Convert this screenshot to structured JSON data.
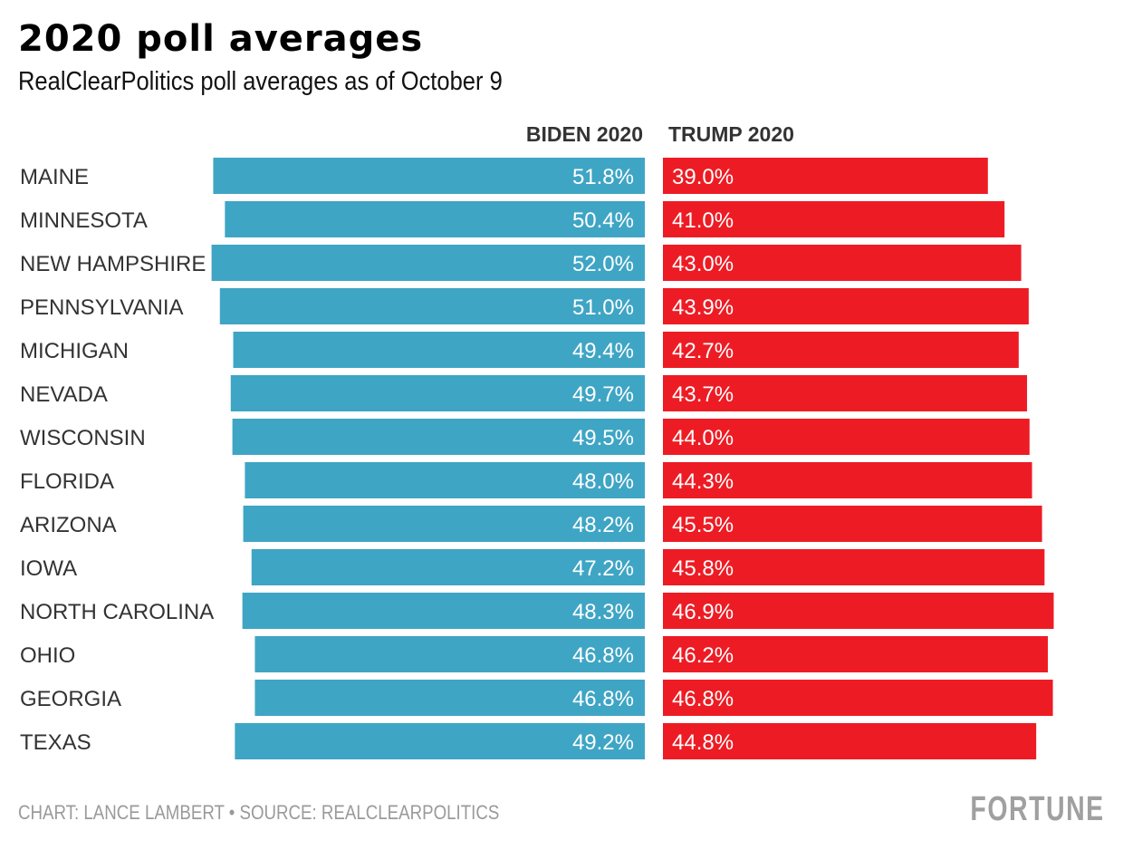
{
  "chart_data": {
    "type": "bar",
    "title": "2020 poll averages",
    "subtitle": "RealClearPolitics poll averages as of October 9",
    "categories": [
      "MAINE",
      "MINNESOTA",
      "NEW HAMPSHIRE",
      "PENNSYLVANIA",
      "MICHIGAN",
      "NEVADA",
      "WISCONSIN",
      "FLORIDA",
      "ARIZONA",
      "IOWA",
      "NORTH CAROLINA",
      "OHIO",
      "GEORGIA",
      "TEXAS"
    ],
    "series": [
      {
        "name": "BIDEN 2020",
        "color": "#3fa5c4",
        "direction": "left",
        "values": [
          51.8,
          50.4,
          52.0,
          51.0,
          49.4,
          49.7,
          49.5,
          48.0,
          48.2,
          47.2,
          48.3,
          46.8,
          46.8,
          49.2
        ],
        "labels": [
          "51.8%",
          "50.4%",
          "52.0%",
          "51.0%",
          "49.4%",
          "49.7%",
          "49.5%",
          "48.0%",
          "48.2%",
          "47.2%",
          "48.3%",
          "46.8%",
          "46.8%",
          "49.2%"
        ]
      },
      {
        "name": "TRUMP 2020",
        "color": "#ed1c24",
        "direction": "right",
        "values": [
          39.0,
          41.0,
          43.0,
          43.9,
          42.7,
          43.7,
          44.0,
          44.3,
          45.5,
          45.8,
          46.9,
          46.2,
          46.8,
          44.8
        ],
        "labels": [
          "39.0%",
          "41.0%",
          "43.0%",
          "43.9%",
          "42.7%",
          "43.7%",
          "44.0%",
          "44.3%",
          "45.5%",
          "45.8%",
          "46.9%",
          "46.2%",
          "46.8%",
          "44.8%"
        ]
      }
    ],
    "xlabel": "",
    "ylabel": "",
    "unit": "%",
    "grid": false,
    "legend": "top-center column headers"
  },
  "footer": {
    "source": "CHART: LANCE LAMBERT • SOURCE: REALCLEARPOLITICS",
    "logo": "FORTUNE"
  }
}
